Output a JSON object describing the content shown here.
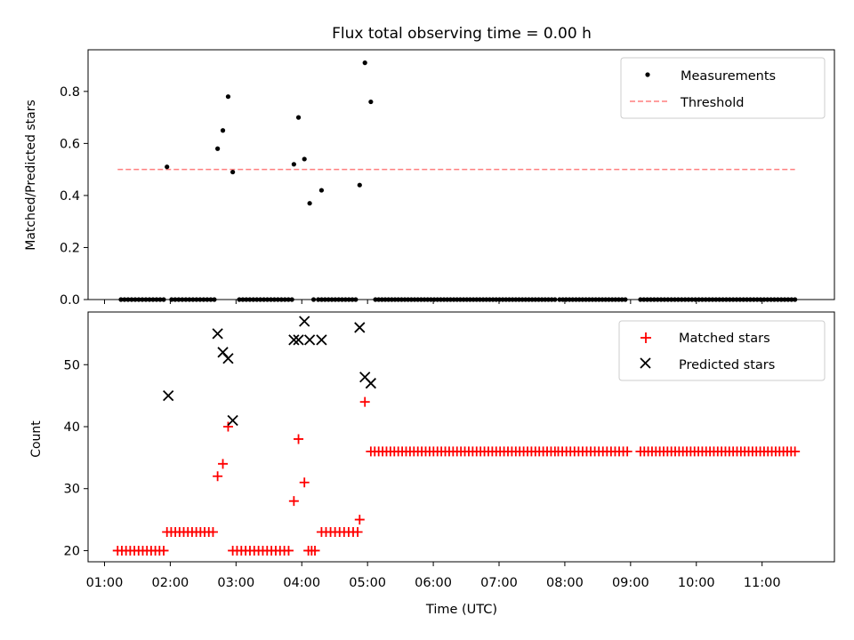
{
  "chart_data": [
    {
      "type": "scatter",
      "title": "Flux total observing time = 0.00 h",
      "xlabel": "",
      "ylabel": "Matched/Predicted stars",
      "ylim": [
        0,
        0.96
      ],
      "yticks": [
        0.0,
        0.2,
        0.4,
        0.6,
        0.8
      ],
      "ytick_labels": [
        "0.0",
        "0.2",
        "0.4",
        "0.6",
        "0.8"
      ],
      "legend_position": "top-right",
      "series": [
        {
          "name": "Measurements",
          "color": "#000000",
          "marker": "dot",
          "zero_runs": [
            [
              1.25,
              1.9,
              13
            ],
            [
              2.02,
              2.67,
              13
            ],
            [
              3.05,
              3.85,
              16
            ],
            [
              4.25,
              4.82,
              12
            ],
            [
              5.12,
              7.85,
              56
            ],
            [
              7.92,
              8.92,
              21
            ],
            [
              9.15,
              11.5,
              46
            ]
          ],
          "points": [
            [
              1.95,
              0.51
            ],
            [
              2.72,
              0.58
            ],
            [
              2.8,
              0.65
            ],
            [
              2.88,
              0.78
            ],
            [
              2.95,
              0.49
            ],
            [
              3.88,
              0.52
            ],
            [
              3.95,
              0.7
            ],
            [
              4.04,
              0.54
            ],
            [
              4.12,
              0.37
            ],
            [
              4.18,
              0.0
            ],
            [
              4.3,
              0.42
            ],
            [
              4.88,
              0.44
            ],
            [
              4.96,
              0.91
            ],
            [
              5.05,
              0.76
            ]
          ]
        },
        {
          "name": "Threshold",
          "color": "#ff7f7f",
          "style": "dashed",
          "x": [
            1.2,
            11.5
          ],
          "values": [
            0.5,
            0.5
          ]
        }
      ]
    },
    {
      "type": "scatter",
      "title": "",
      "xlabel": "Time (UTC)",
      "ylabel": "Count",
      "ylim": [
        18.2,
        58.5
      ],
      "yticks": [
        20,
        30,
        40,
        50
      ],
      "ytick_labels": [
        "20",
        "30",
        "40",
        "50"
      ],
      "xlim": [
        0.75,
        12.1
      ],
      "xticks": [
        1,
        2,
        3,
        4,
        5,
        6,
        7,
        8,
        9,
        10,
        11
      ],
      "xtick_labels": [
        "01:00",
        "02:00",
        "03:00",
        "04:00",
        "05:00",
        "06:00",
        "07:00",
        "08:00",
        "09:00",
        "10:00",
        "11:00"
      ],
      "legend_position": "top-right",
      "series": [
        {
          "name": "Matched stars",
          "color": "#ff0000",
          "marker": "plus",
          "runs": [
            [
              1.2,
              1.9,
              12,
              20
            ],
            [
              1.95,
              2.65,
              12,
              23
            ],
            [
              2.95,
              3.8,
              14,
              20
            ],
            [
              4.1,
              4.2,
              3,
              20
            ],
            [
              4.3,
              4.85,
              9,
              23
            ],
            [
              5.05,
              7.85,
              48,
              36
            ],
            [
              7.9,
              8.95,
              18,
              36
            ],
            [
              9.15,
              11.5,
              41,
              36
            ]
          ],
          "points": [
            [
              2.72,
              32
            ],
            [
              2.8,
              34
            ],
            [
              2.88,
              40
            ],
            [
              3.88,
              28
            ],
            [
              3.95,
              38
            ],
            [
              4.04,
              31
            ],
            [
              4.88,
              25
            ],
            [
              4.96,
              44
            ]
          ]
        },
        {
          "name": "Predicted stars",
          "color": "#000000",
          "marker": "x",
          "points": [
            [
              1.97,
              45
            ],
            [
              2.72,
              55
            ],
            [
              2.8,
              52
            ],
            [
              2.88,
              51
            ],
            [
              2.95,
              41
            ],
            [
              3.88,
              54
            ],
            [
              3.95,
              54
            ],
            [
              4.04,
              57
            ],
            [
              4.12,
              54
            ],
            [
              4.3,
              54
            ],
            [
              4.88,
              56
            ],
            [
              4.96,
              48
            ],
            [
              5.05,
              47
            ]
          ]
        }
      ]
    }
  ]
}
